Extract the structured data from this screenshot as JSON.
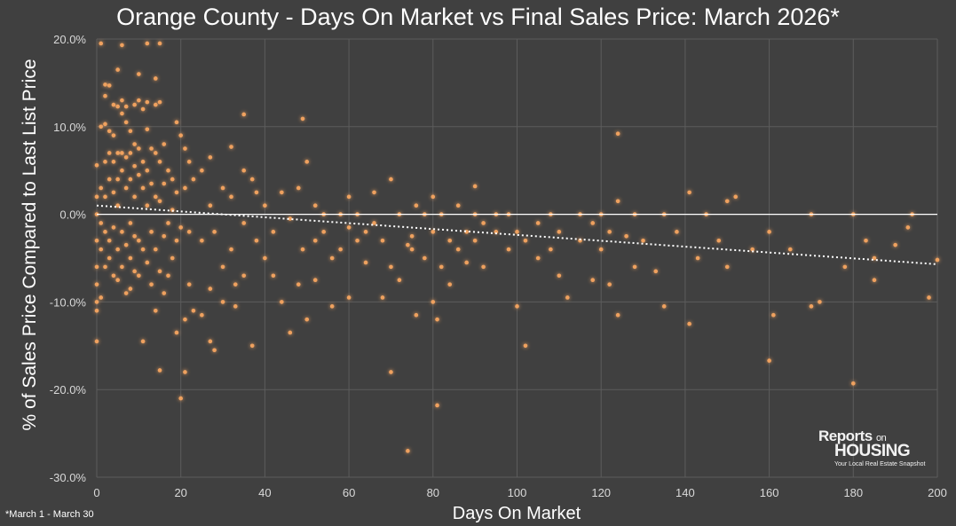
{
  "chart_data": {
    "type": "scatter",
    "title": "Orange County - Days On Market vs Final Sales Price: March 2026*",
    "xlabel": "Days On Market",
    "ylabel": "% of Sales Price Compared to Last List Price",
    "xlim": [
      0,
      200
    ],
    "ylim": [
      -30,
      20
    ],
    "x_ticks": [
      0,
      20,
      40,
      60,
      80,
      100,
      120,
      140,
      160,
      180,
      200
    ],
    "x_tick_labels": [
      "0",
      "20",
      "40",
      "60",
      "80",
      "100",
      "120",
      "140",
      "160",
      "180",
      "200"
    ],
    "y_ticks": [
      20,
      10,
      0,
      -10,
      -20,
      -30
    ],
    "y_tick_labels": [
      "20.0%",
      "10.0%",
      "0.0%",
      "-10.0%",
      "-20.0%",
      "-30.0%"
    ],
    "grid": true,
    "trendline": {
      "type": "linear",
      "from": [
        0,
        1.0
      ],
      "to": [
        200,
        -5.7
      ],
      "style": "dotted",
      "color": "#ffffff"
    },
    "reference_line": {
      "y": 0,
      "color": "#ffffff"
    },
    "point_color": "#f4a460",
    "points": [
      [
        0,
        0
      ],
      [
        0,
        5.6
      ],
      [
        0,
        2
      ],
      [
        0,
        -3
      ],
      [
        0,
        -8
      ],
      [
        0,
        -10
      ],
      [
        0,
        -14.5
      ],
      [
        0,
        -11
      ],
      [
        0,
        -6
      ],
      [
        1,
        19.5
      ],
      [
        1,
        10
      ],
      [
        1,
        3
      ],
      [
        1,
        -1
      ],
      [
        1,
        -4
      ],
      [
        1,
        -9.5
      ],
      [
        2,
        14.8
      ],
      [
        2,
        13.5
      ],
      [
        2,
        10.3
      ],
      [
        2,
        6
      ],
      [
        2,
        2
      ],
      [
        2,
        -2
      ],
      [
        2,
        -6
      ],
      [
        3,
        14.7
      ],
      [
        3,
        9.5
      ],
      [
        3,
        7
      ],
      [
        3,
        4
      ],
      [
        3,
        -3
      ],
      [
        3,
        -5
      ],
      [
        4,
        12.5
      ],
      [
        4,
        9
      ],
      [
        4,
        6
      ],
      [
        4,
        2.5
      ],
      [
        4,
        -1.5
      ],
      [
        4,
        -7
      ],
      [
        5,
        16.5
      ],
      [
        5,
        12.3
      ],
      [
        5,
        7
      ],
      [
        5,
        4
      ],
      [
        5,
        1
      ],
      [
        5,
        -4
      ],
      [
        5,
        -7.5
      ],
      [
        6,
        19.3
      ],
      [
        6,
        13
      ],
      [
        6,
        11.5
      ],
      [
        6,
        7
      ],
      [
        6,
        5
      ],
      [
        6,
        -2
      ],
      [
        6,
        -6
      ],
      [
        7,
        12.3
      ],
      [
        7,
        10.5
      ],
      [
        7,
        6.5
      ],
      [
        7,
        3
      ],
      [
        7,
        -3.5
      ],
      [
        7,
        -9
      ],
      [
        8,
        9.5
      ],
      [
        8,
        7
      ],
      [
        8,
        4
      ],
      [
        8,
        -1
      ],
      [
        8,
        -5
      ],
      [
        8,
        -8.5
      ],
      [
        9,
        12.5
      ],
      [
        9,
        8
      ],
      [
        9,
        5.5
      ],
      [
        9,
        2
      ],
      [
        9,
        -2.5
      ],
      [
        9,
        -6.5
      ],
      [
        10,
        16
      ],
      [
        10,
        13
      ],
      [
        10,
        7.5
      ],
      [
        10,
        4.5
      ],
      [
        10,
        -3
      ],
      [
        10,
        -7
      ],
      [
        11,
        12
      ],
      [
        11,
        6
      ],
      [
        11,
        3
      ],
      [
        11,
        -4
      ],
      [
        11,
        -14.5
      ],
      [
        12,
        19.5
      ],
      [
        12,
        12.8
      ],
      [
        12,
        9.7
      ],
      [
        12,
        5
      ],
      [
        12,
        1
      ],
      [
        12,
        -5.5
      ],
      [
        13,
        7.5
      ],
      [
        13,
        3.5
      ],
      [
        13,
        -2
      ],
      [
        13,
        -8
      ],
      [
        14,
        15.5
      ],
      [
        14,
        12.5
      ],
      [
        14,
        7
      ],
      [
        14,
        2
      ],
      [
        14,
        -4
      ],
      [
        14,
        -11
      ],
      [
        15,
        19.5
      ],
      [
        15,
        12.8
      ],
      [
        15,
        6
      ],
      [
        15,
        1.5
      ],
      [
        15,
        -6.5
      ],
      [
        15,
        -17.8
      ],
      [
        16,
        8
      ],
      [
        16,
        3.5
      ],
      [
        16,
        -2.5
      ],
      [
        16,
        -9
      ],
      [
        17,
        5
      ],
      [
        17,
        -1
      ],
      [
        17,
        -7
      ],
      [
        18,
        4
      ],
      [
        18,
        0.5
      ],
      [
        18,
        -5
      ],
      [
        19,
        10.5
      ],
      [
        19,
        2.5
      ],
      [
        19,
        -3
      ],
      [
        19,
        -13.5
      ],
      [
        20,
        9
      ],
      [
        20,
        -1.5
      ],
      [
        20,
        -21
      ],
      [
        21,
        7.5
      ],
      [
        21,
        3
      ],
      [
        21,
        -12
      ],
      [
        21,
        -18
      ],
      [
        22,
        6
      ],
      [
        22,
        -2
      ],
      [
        22,
        -8
      ],
      [
        23,
        4
      ],
      [
        23,
        -11
      ],
      [
        25,
        5
      ],
      [
        25,
        -3
      ],
      [
        25,
        -11.5
      ],
      [
        27,
        6.5
      ],
      [
        27,
        1
      ],
      [
        27,
        -14.5
      ],
      [
        27,
        -8.5
      ],
      [
        28,
        -15.5
      ],
      [
        28,
        -2
      ],
      [
        30,
        3
      ],
      [
        30,
        -6
      ],
      [
        30,
        -10
      ],
      [
        32,
        7.7
      ],
      [
        32,
        2
      ],
      [
        32,
        -4
      ],
      [
        33,
        -10.5
      ],
      [
        33,
        -8
      ],
      [
        35,
        11.4
      ],
      [
        35,
        5
      ],
      [
        35,
        -1
      ],
      [
        35,
        -7
      ],
      [
        37,
        4
      ],
      [
        37,
        -15
      ],
      [
        38,
        2.5
      ],
      [
        38,
        -3
      ],
      [
        40,
        1
      ],
      [
        40,
        -5
      ],
      [
        42,
        -2
      ],
      [
        42,
        -7
      ],
      [
        44,
        2.5
      ],
      [
        44,
        -10
      ],
      [
        46,
        -0.5
      ],
      [
        46,
        -13.5
      ],
      [
        48,
        3
      ],
      [
        48,
        -8
      ],
      [
        49,
        10.9
      ],
      [
        49,
        -4
      ],
      [
        50,
        6
      ],
      [
        50,
        -12
      ],
      [
        52,
        1
      ],
      [
        52,
        -3
      ],
      [
        52,
        -7.5
      ],
      [
        54,
        0
      ],
      [
        54,
        -2
      ],
      [
        56,
        -10.5
      ],
      [
        56,
        -5
      ],
      [
        58,
        0
      ],
      [
        58,
        -4
      ],
      [
        60,
        2
      ],
      [
        60,
        -1.5
      ],
      [
        60,
        -9.5
      ],
      [
        62,
        0
      ],
      [
        62,
        -3
      ],
      [
        64,
        -2
      ],
      [
        64,
        -5.5
      ],
      [
        66,
        2.5
      ],
      [
        66,
        -1
      ],
      [
        68,
        -9.5
      ],
      [
        68,
        -3
      ],
      [
        70,
        4
      ],
      [
        70,
        -18
      ],
      [
        70,
        -6
      ],
      [
        72,
        0
      ],
      [
        72,
        -7.5
      ],
      [
        74,
        -27
      ],
      [
        74,
        -3.5
      ],
      [
        75,
        -2.5
      ],
      [
        75,
        -4
      ],
      [
        76,
        -11.5
      ],
      [
        76,
        1
      ],
      [
        78,
        0
      ],
      [
        78,
        -5
      ],
      [
        80,
        2
      ],
      [
        80,
        -10
      ],
      [
        80,
        -2
      ],
      [
        81,
        -21.8
      ],
      [
        81,
        -12
      ],
      [
        82,
        -6
      ],
      [
        82,
        0
      ],
      [
        84,
        -3
      ],
      [
        84,
        -8
      ],
      [
        86,
        1
      ],
      [
        86,
        -4
      ],
      [
        88,
        -2
      ],
      [
        88,
        -5.5
      ],
      [
        90,
        3.2
      ],
      [
        90,
        0
      ],
      [
        90,
        -3
      ],
      [
        92,
        -1
      ],
      [
        92,
        -6
      ],
      [
        95,
        -2
      ],
      [
        95,
        0
      ],
      [
        98,
        -4
      ],
      [
        98,
        0
      ],
      [
        100,
        -10.5
      ],
      [
        100,
        -2
      ],
      [
        102,
        -15
      ],
      [
        102,
        -3
      ],
      [
        105,
        -1
      ],
      [
        105,
        -5
      ],
      [
        108,
        -4
      ],
      [
        108,
        0
      ],
      [
        110,
        -7
      ],
      [
        110,
        -2
      ],
      [
        112,
        -9.5
      ],
      [
        115,
        -3
      ],
      [
        115,
        0
      ],
      [
        118,
        -7.5
      ],
      [
        118,
        -1
      ],
      [
        120,
        0
      ],
      [
        120,
        -4
      ],
      [
        122,
        -8
      ],
      [
        122,
        -2
      ],
      [
        124,
        9.2
      ],
      [
        124,
        -11.5
      ],
      [
        124,
        1.5
      ],
      [
        126,
        -2.5
      ],
      [
        128,
        0
      ],
      [
        128,
        -6
      ],
      [
        130,
        -3
      ],
      [
        133,
        -6.5
      ],
      [
        135,
        -10.5
      ],
      [
        135,
        0
      ],
      [
        138,
        -2
      ],
      [
        141,
        -12.5
      ],
      [
        141,
        2.5
      ],
      [
        143,
        -5
      ],
      [
        145,
        0
      ],
      [
        148,
        -3
      ],
      [
        150,
        1.5
      ],
      [
        150,
        -6
      ],
      [
        152,
        2
      ],
      [
        156,
        -4
      ],
      [
        160,
        -16.7
      ],
      [
        160,
        -2
      ],
      [
        161,
        -11.5
      ],
      [
        165,
        -4
      ],
      [
        170,
        -10.5
      ],
      [
        170,
        0
      ],
      [
        172,
        -10
      ],
      [
        178,
        -6
      ],
      [
        180,
        -19.3
      ],
      [
        180,
        0
      ],
      [
        183,
        -3
      ],
      [
        185,
        -5
      ],
      [
        185,
        -7.5
      ],
      [
        190,
        -3.5
      ],
      [
        193,
        -1.5
      ],
      [
        194,
        0
      ],
      [
        198,
        -9.5
      ],
      [
        200,
        -5.2
      ]
    ],
    "footnote": "*March 1 - March 30"
  },
  "logo": {
    "line1": "Reports",
    "line1_small": "on",
    "line2": "HOUSING",
    "tagline": "Your Local Real Estate Snapshot"
  }
}
